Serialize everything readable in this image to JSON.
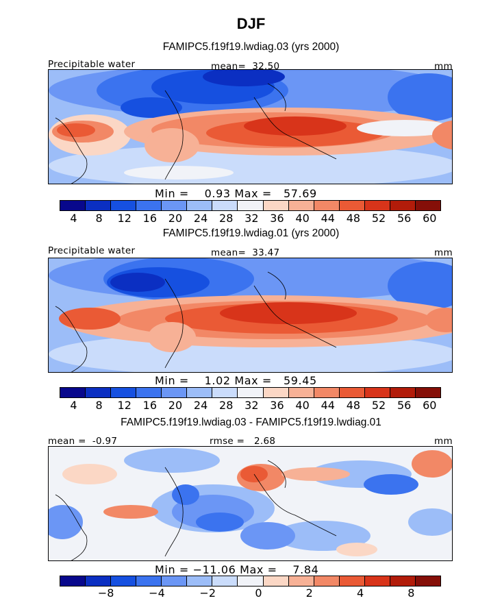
{
  "title": "DJF",
  "colors": {
    "abs_scale": [
      "#08088c",
      "#0b2fc2",
      "#1650e0",
      "#3b73ef",
      "#6b96f5",
      "#9cbdf8",
      "#cadcfb",
      "#f1f3f8",
      "#fbd7c5",
      "#f7b196",
      "#f28866",
      "#ea5a35",
      "#d8341a",
      "#b21c0a",
      "#850f08"
    ],
    "diff_scale": [
      "#08088c",
      "#0b2fc2",
      "#1650e0",
      "#3b73ef",
      "#6b96f5",
      "#9cbdf8",
      "#cadcfb",
      "#f1f3f8",
      "#fbd7c5",
      "#f7b196",
      "#f28866",
      "#ea5a35",
      "#d8341a",
      "#b21c0a",
      "#850f08"
    ]
  },
  "panels": [
    {
      "subtitle": "FAMIPC5.f19f19.lwdiag.03 (yrs 2000)",
      "left_label": "Precipitable water",
      "center_label": "mean=  32.50",
      "right_label": "mm",
      "min_max": "Min =    0.93 Max =   57.69",
      "ticks": [
        "4",
        "8",
        "12",
        "16",
        "20",
        "24",
        "28",
        "32",
        "36",
        "40",
        "44",
        "48",
        "52",
        "56",
        "60"
      ]
    },
    {
      "subtitle": "FAMIPC5.f19f19.lwdiag.01 (yrs 2000)",
      "left_label": "Precipitable water",
      "center_label": "mean=  33.47",
      "right_label": "mm",
      "min_max": "Min =    1.02 Max =   59.45",
      "ticks": [
        "4",
        "8",
        "12",
        "16",
        "20",
        "24",
        "28",
        "32",
        "36",
        "40",
        "44",
        "48",
        "52",
        "56",
        "60"
      ]
    },
    {
      "subtitle": "FAMIPC5.f19f19.lwdiag.03 - FAMIPC5.f19f19.lwdiag.01",
      "left_label": "mean =  -0.97",
      "center_label": "rmse =   2.68",
      "right_label": "mm",
      "min_max": "Min = −11.06 Max =    7.84",
      "ticks": [
        "−8",
        "−4",
        "−2",
        "0",
        "2",
        "4",
        "8"
      ]
    }
  ],
  "chart_data": [
    {
      "type": "heatmap",
      "title": "FAMIPC5.f19f19.lwdiag.03 (yrs 2000)",
      "variable": "Precipitable water",
      "units": "mm",
      "mean": 32.5,
      "min": 0.93,
      "max": 57.69,
      "contour_levels": [
        4,
        8,
        12,
        16,
        20,
        24,
        28,
        32,
        36,
        40,
        44,
        48,
        52,
        56,
        60
      ]
    },
    {
      "type": "heatmap",
      "title": "FAMIPC5.f19f19.lwdiag.01 (yrs 2000)",
      "variable": "Precipitable water",
      "units": "mm",
      "mean": 33.47,
      "min": 1.02,
      "max": 59.45,
      "contour_levels": [
        4,
        8,
        12,
        16,
        20,
        24,
        28,
        32,
        36,
        40,
        44,
        48,
        52,
        56,
        60
      ]
    },
    {
      "type": "heatmap",
      "title": "FAMIPC5.f19f19.lwdiag.03 - FAMIPC5.f19f19.lwdiag.01",
      "units": "mm",
      "mean": -0.97,
      "rmse": 2.68,
      "min": -11.06,
      "max": 7.84,
      "labeled_ticks": [
        -8,
        -4,
        -2,
        0,
        2,
        4,
        8
      ]
    }
  ]
}
